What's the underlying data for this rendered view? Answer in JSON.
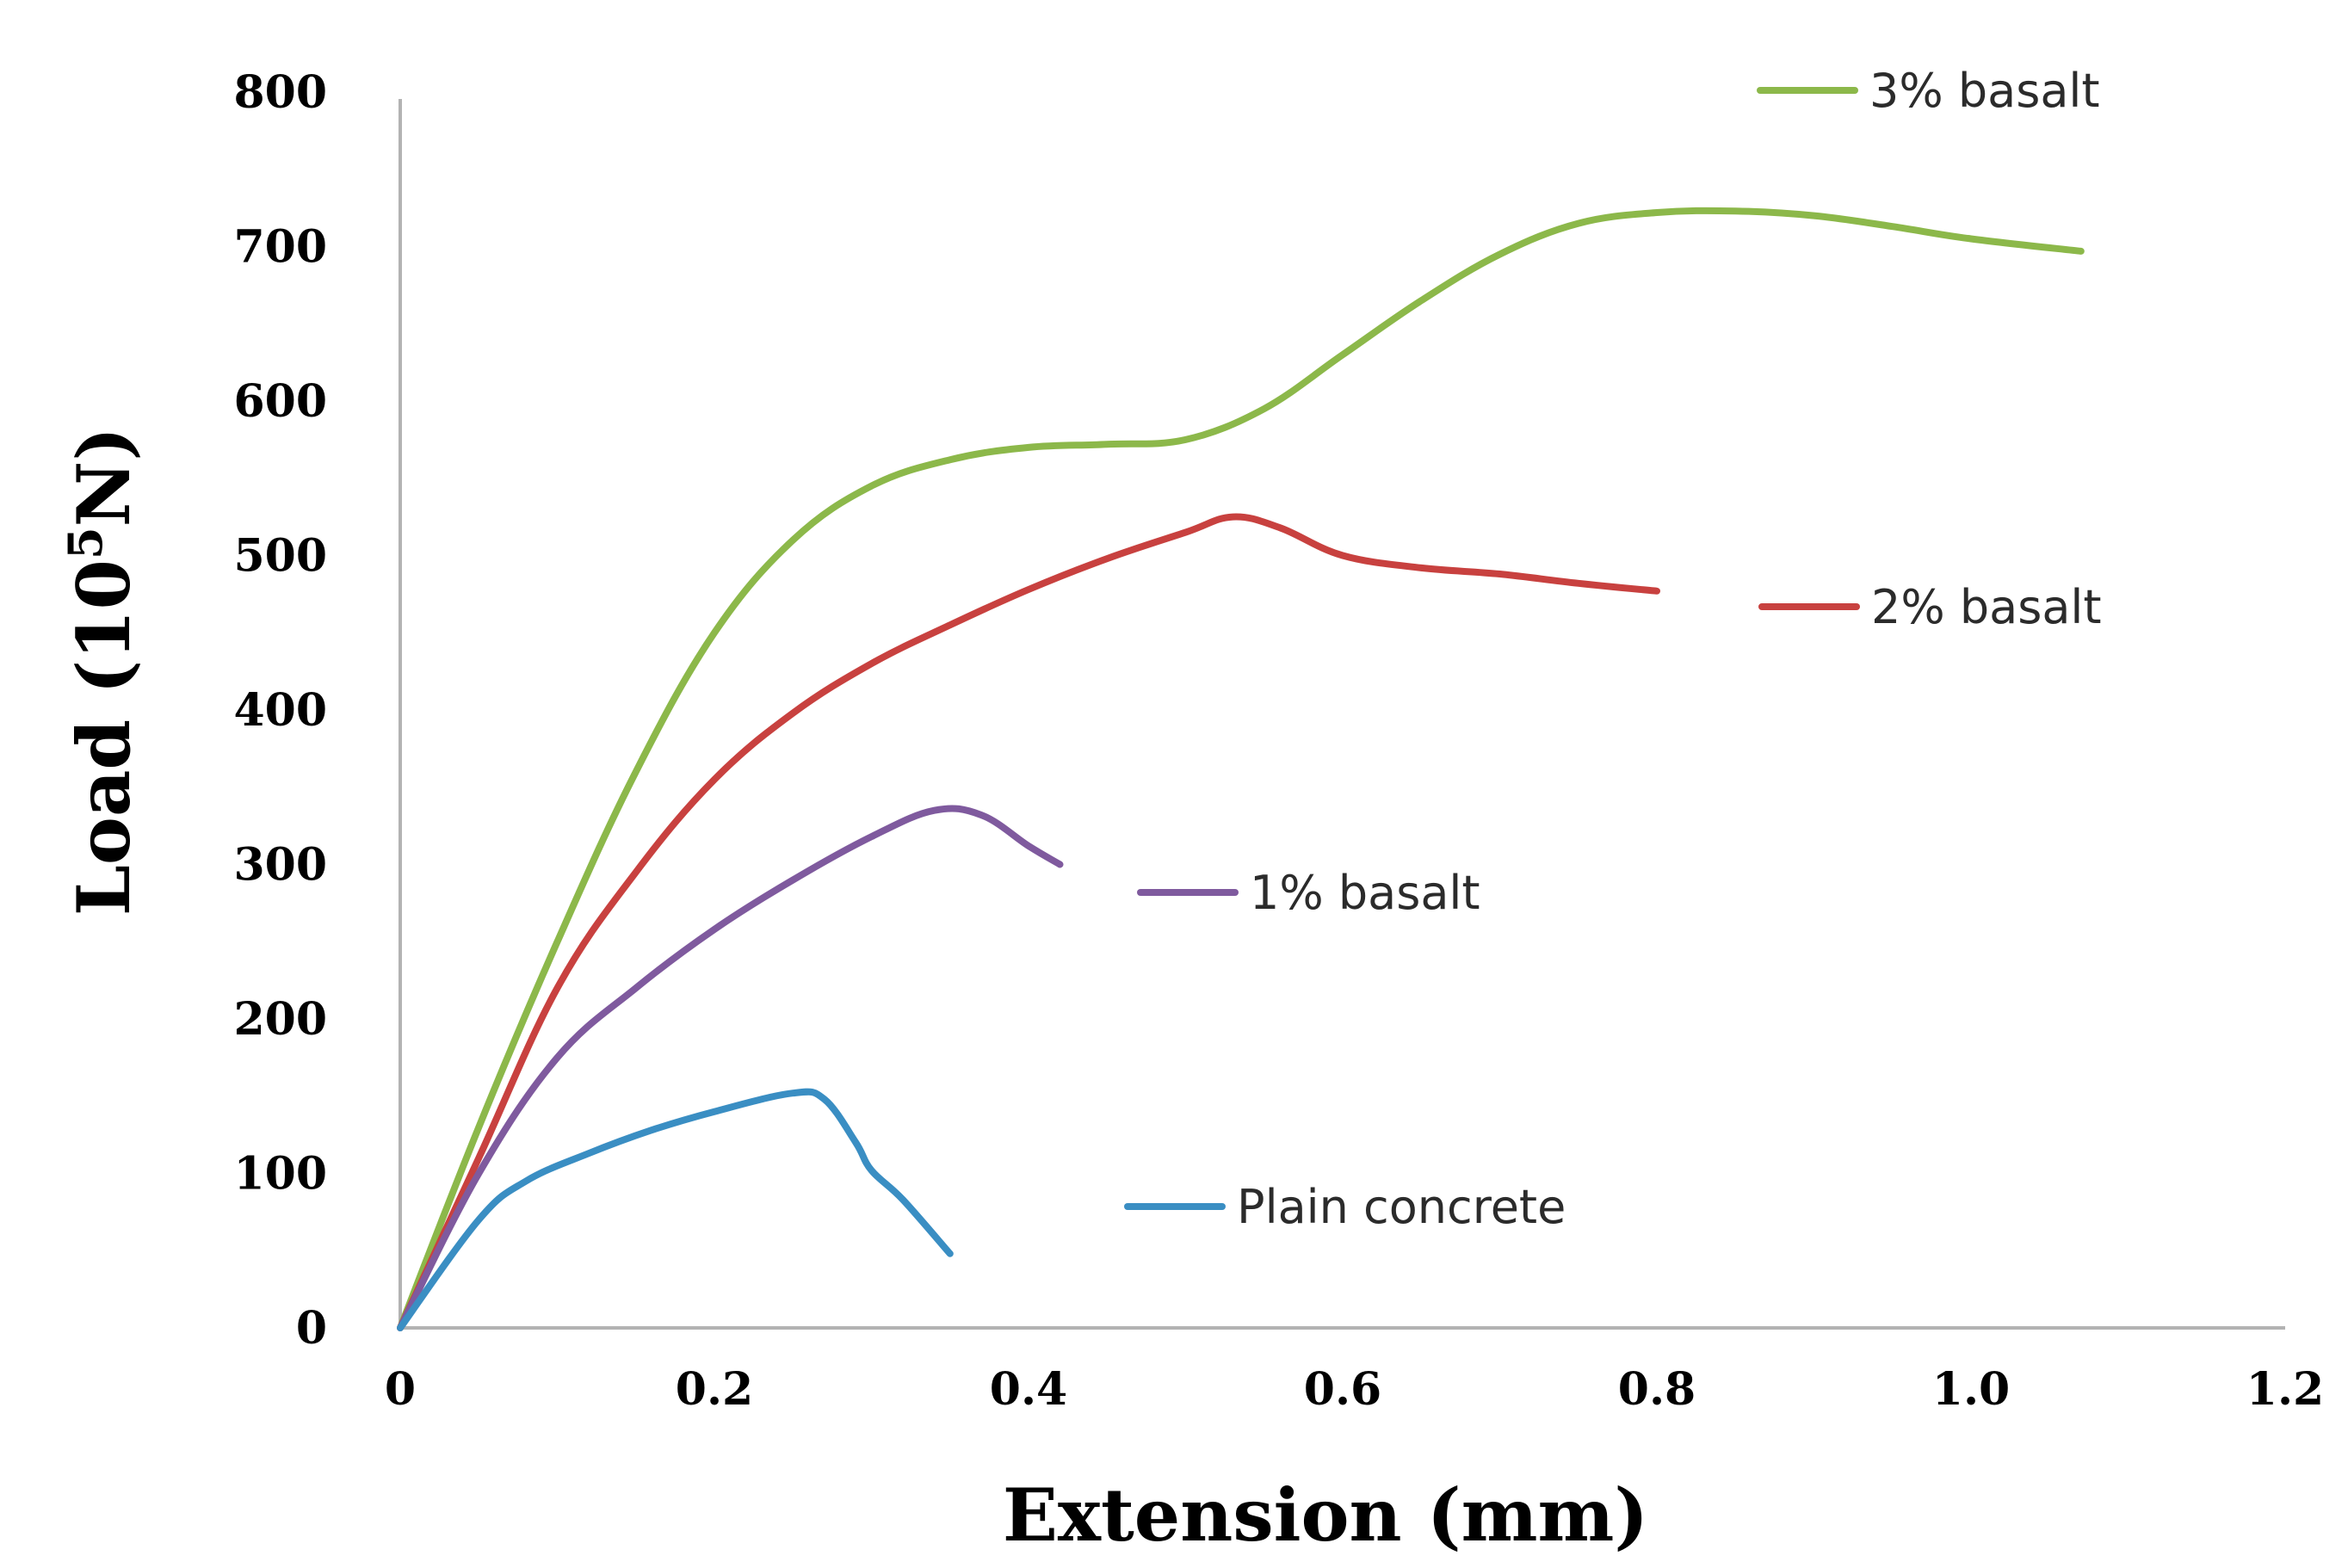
{
  "chart_data": {
    "type": "line",
    "title": "",
    "xlabel": "Extension (mm)",
    "ylabel_main": "Load (10",
    "ylabel_sup": "5",
    "ylabel_end": "N)",
    "xlim": [
      0,
      1.2
    ],
    "ylim": [
      0,
      800
    ],
    "x_ticks": [
      {
        "value": 0,
        "label": "0"
      },
      {
        "value": 0.2,
        "label": "0.2"
      },
      {
        "value": 0.4,
        "label": "0.4"
      },
      {
        "value": 0.6,
        "label": "0.6"
      },
      {
        "value": 0.8,
        "label": "0.8"
      },
      {
        "value": 1.0,
        "label": "1.0"
      },
      {
        "value": 1.2,
        "label": "1.2"
      }
    ],
    "y_ticks": [
      {
        "value": 0,
        "label": "0"
      },
      {
        "value": 100,
        "label": "100"
      },
      {
        "value": 200,
        "label": "200"
      },
      {
        "value": 300,
        "label": "300"
      },
      {
        "value": 400,
        "label": "400"
      },
      {
        "value": 500,
        "label": "500"
      },
      {
        "value": 600,
        "label": "600"
      },
      {
        "value": 700,
        "label": "700"
      },
      {
        "value": 800,
        "label": "800"
      }
    ],
    "grid": false,
    "legend_placement": "inline labels at right of each curve",
    "series": [
      {
        "name": "3% basalt",
        "color": "#8cb84a",
        "x": [
          0,
          0.05,
          0.1,
          0.15,
          0.2,
          0.25,
          0.3,
          0.35,
          0.4,
          0.45,
          0.5,
          0.55,
          0.6,
          0.65,
          0.7,
          0.75,
          0.8,
          0.85,
          0.9,
          0.95,
          1.0,
          1.07
        ],
        "y": [
          0,
          130,
          250,
          360,
          450,
          510,
          545,
          562,
          570,
          572,
          575,
          595,
          630,
          665,
          695,
          715,
          722,
          723,
          720,
          713,
          705,
          697
        ]
      },
      {
        "name": "2% basalt",
        "color": "#c8413f",
        "x": [
          0,
          0.05,
          0.1,
          0.15,
          0.2,
          0.25,
          0.3,
          0.35,
          0.4,
          0.45,
          0.5,
          0.53,
          0.56,
          0.6,
          0.65,
          0.7,
          0.75,
          0.8
        ],
        "y": [
          0,
          110,
          220,
          295,
          355,
          398,
          430,
          455,
          478,
          498,
          515,
          525,
          518,
          500,
          492,
          488,
          482,
          477
        ]
      },
      {
        "name": "1% basalt",
        "color": "#7f5a9e",
        "x": [
          0,
          0.05,
          0.1,
          0.15,
          0.2,
          0.25,
          0.3,
          0.34,
          0.37,
          0.4,
          0.42
        ],
        "y": [
          0,
          100,
          175,
          220,
          258,
          290,
          318,
          335,
          332,
          312,
          300
        ]
      },
      {
        "name": "Plain concrete",
        "color": "#3a8ec3",
        "x": [
          0,
          0.05,
          0.08,
          0.12,
          0.16,
          0.2,
          0.25,
          0.27,
          0.29,
          0.3,
          0.32,
          0.35
        ],
        "y": [
          0,
          70,
          95,
          113,
          128,
          140,
          152,
          148,
          120,
          102,
          83,
          48
        ]
      }
    ],
    "legend": [
      {
        "label": "3% basalt",
        "color": "#8cb84a"
      },
      {
        "label": "2% basalt",
        "color": "#c8413f"
      },
      {
        "label": "1% basalt",
        "color": "#7f5a9e"
      },
      {
        "label": "Plain concrete",
        "color": "#3a8ec3"
      }
    ]
  }
}
